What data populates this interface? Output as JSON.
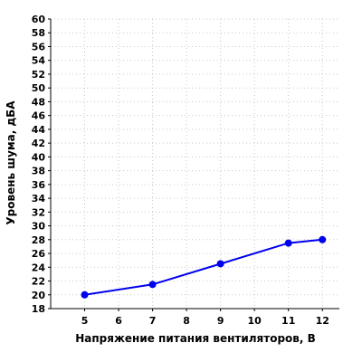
{
  "chart_data": {
    "type": "line",
    "xlabel": "Напряжение питания вентиляторов, В",
    "ylabel": "Уровень шума, дБА",
    "xlim": [
      4,
      12.5
    ],
    "ylim": [
      18,
      60
    ],
    "xticks": [
      5,
      6,
      7,
      8,
      9,
      10,
      11,
      12
    ],
    "yticks": [
      18,
      20,
      22,
      24,
      26,
      28,
      30,
      32,
      34,
      36,
      38,
      40,
      42,
      44,
      46,
      48,
      50,
      52,
      54,
      56,
      58,
      60
    ],
    "grid": true,
    "series": [
      {
        "color": "#0000ee",
        "x": [
          5,
          7,
          9,
          11,
          12
        ],
        "y": [
          20,
          21.5,
          24.5,
          27.5,
          28
        ]
      }
    ]
  }
}
